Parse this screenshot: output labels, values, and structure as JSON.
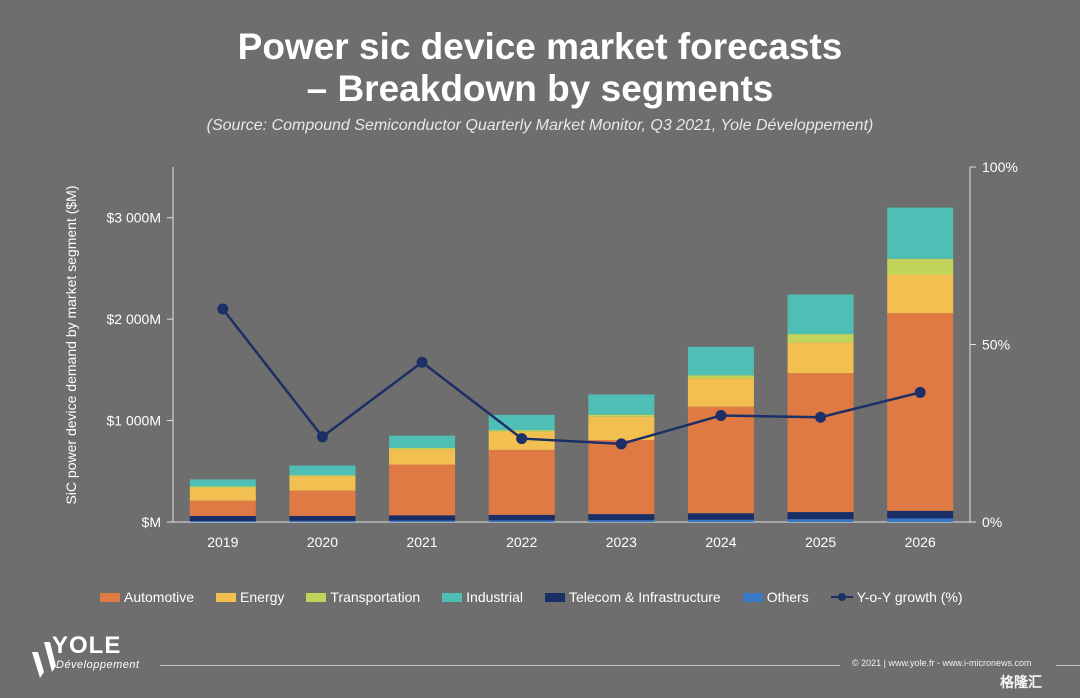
{
  "title_line1": "Power sic device market forecasts",
  "title_line2": "– Breakdown by segments",
  "subtitle": "(Source: Compound Semiconductor Quarterly Market Monitor, Q3 2021, Yole Développement)",
  "chart_data": {
    "type": "bar",
    "stacked": true,
    "categories": [
      "2019",
      "2020",
      "2021",
      "2022",
      "2023",
      "2024",
      "2025",
      "2026"
    ],
    "ylabel": "SiC power device demand by market segment ($M)",
    "ylim": [
      0,
      3500
    ],
    "y_ticks": [
      0,
      1000,
      2000,
      3000
    ],
    "y_tick_labels": [
      "$M",
      "$1 000M",
      "$2 000M",
      "$3 000M"
    ],
    "y2lim": [
      0,
      100
    ],
    "y2_ticks": [
      0,
      50,
      100
    ],
    "y2_tick_labels": [
      "0%",
      "50%",
      "100%"
    ],
    "series": [
      {
        "name": "Others",
        "color": "#3a78c8",
        "values": [
          10,
          12,
          14,
          16,
          18,
          22,
          28,
          35
        ]
      },
      {
        "name": "Telecom & Infrastructure",
        "color": "#1a2e66",
        "values": [
          50,
          48,
          52,
          55,
          60,
          65,
          70,
          75
        ]
      },
      {
        "name": "Automotive",
        "color": "#e07a44",
        "values": [
          150,
          250,
          500,
          640,
          730,
          1050,
          1370,
          1950
        ]
      },
      {
        "name": "Energy",
        "color": "#f2c050",
        "values": [
          130,
          140,
          150,
          180,
          230,
          280,
          300,
          380
        ]
      },
      {
        "name": "Transportation",
        "color": "#c3d45a",
        "values": [
          10,
          12,
          15,
          15,
          20,
          30,
          85,
          155
        ]
      },
      {
        "name": "Industrial",
        "color": "#4fbfb6",
        "values": [
          70,
          95,
          120,
          150,
          200,
          280,
          390,
          505
        ]
      }
    ],
    "line_series": {
      "name": "Y-o-Y growth (%)",
      "color": "#1c2f66",
      "values": [
        60,
        24,
        45,
        23.5,
        22,
        30,
        29.5,
        36.5
      ]
    },
    "legend": [
      {
        "name": "Automotive",
        "color": "#e07a44"
      },
      {
        "name": "Energy",
        "color": "#f2c050"
      },
      {
        "name": "Transportation",
        "color": "#c3d45a"
      },
      {
        "name": "Industrial",
        "color": "#4fbfb6"
      },
      {
        "name": "Telecom & Infrastructure",
        "color": "#1a2e66"
      },
      {
        "name": "Others",
        "color": "#3a78c8"
      },
      {
        "name": "Y-o-Y growth (%)",
        "color": "#1c2f66",
        "line": true
      }
    ],
    "legend_position": "bottom"
  },
  "logo": {
    "name": "YOLE",
    "sub": "Développement"
  },
  "footer": "© 2021 | www.yole.fr - www.i-micronews.com",
  "watermark": "格隆汇"
}
